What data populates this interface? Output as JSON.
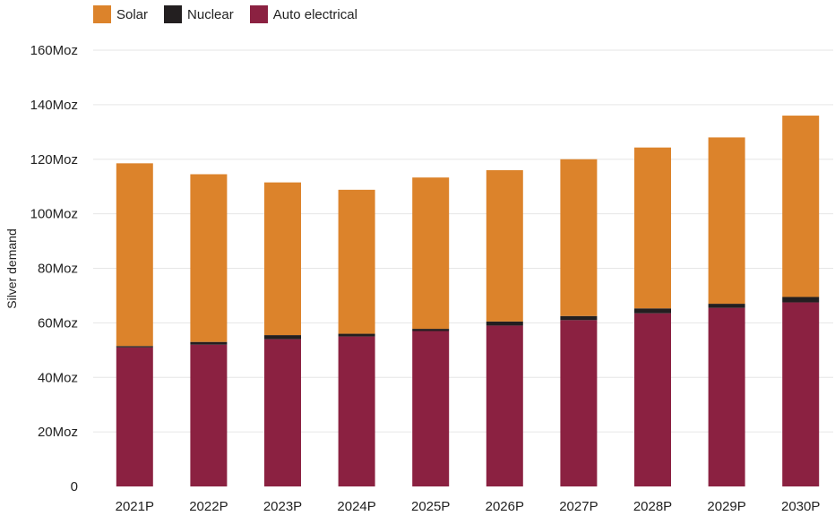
{
  "chart_data": {
    "type": "bar",
    "stacked": true,
    "title": "",
    "xlabel": "",
    "ylabel": "Silver demand",
    "categories": [
      "2021P",
      "2022P",
      "2023P",
      "2024P",
      "2025P",
      "2026P",
      "2027P",
      "2028P",
      "2029P",
      "2030P"
    ],
    "series": [
      {
        "name": "Auto electrical",
        "color": "#8B2141",
        "values": [
          51,
          52,
          54,
          55,
          57,
          59,
          61,
          63.5,
          65.5,
          67.5
        ]
      },
      {
        "name": "Nuclear",
        "color": "#231F20",
        "values": [
          0.5,
          1,
          1.5,
          1,
          0.8,
          1.5,
          1.5,
          1.8,
          1.5,
          2
        ]
      },
      {
        "name": "Solar",
        "color": "#DC832B",
        "values": [
          67,
          61.5,
          56,
          52.8,
          55.5,
          55.5,
          57.5,
          59,
          61,
          66.5
        ]
      }
    ],
    "ylim": [
      0,
      160
    ],
    "yticks": [
      0,
      20,
      40,
      60,
      80,
      100,
      120,
      140,
      160
    ],
    "ytick_labels": [
      "0",
      "20Moz",
      "40Moz",
      "60Moz",
      "80Moz",
      "100Moz",
      "120Moz",
      "140Moz",
      "160Moz"
    ],
    "grid": true,
    "legend_position": "top-left"
  }
}
